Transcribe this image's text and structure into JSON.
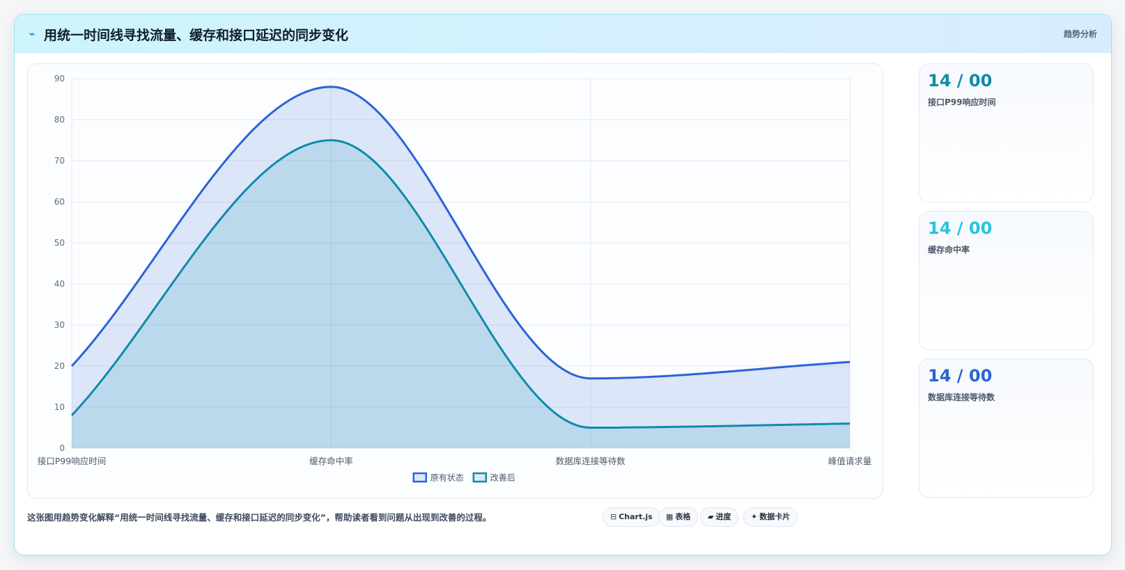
{
  "header": {
    "icon": "lightning-icon",
    "title": "用统一时间线寻找流量、缓存和接口延迟的同步变化",
    "badge": "趋势分析"
  },
  "stats": [
    {
      "value": "14 / 00",
      "label": "接口P99响应时间",
      "color": "#0e8ba8"
    },
    {
      "value": "14 / 00",
      "label": "缓存命中率",
      "color": "#22c7e0"
    },
    {
      "value": "14 / 00",
      "label": "数据库连接等待数",
      "color": "#2a63d6"
    }
  ],
  "footer": {
    "text": "这张图用趋势变化解释“用统一时间线寻找流量、缓存和接口延迟的同步变化”，帮助读者看到问题从出现到改善的过程。"
  },
  "tags": [
    {
      "icon": "chart-icon",
      "glyph": "⊟",
      "label": "Chart.js"
    },
    {
      "icon": "table-icon",
      "glyph": "▦",
      "label": "表格"
    },
    {
      "icon": "progress-icon",
      "glyph": "▰",
      "label": "进度"
    },
    {
      "icon": "sparkle-icon",
      "glyph": "✦",
      "label": "数据卡片"
    }
  ],
  "chart_data": {
    "type": "area",
    "categories": [
      "接口P99响应时间",
      "缓存命中率",
      "数据库连接等待数",
      "峰值请求量"
    ],
    "series": [
      {
        "name": "原有状态",
        "values": [
          20,
          88,
          17,
          21
        ],
        "color": "#2a63d6",
        "fill": "rgba(42,99,214,0.15)"
      },
      {
        "name": "改善后",
        "values": [
          8,
          75,
          5,
          6
        ],
        "color": "#0e8ba8",
        "fill": "rgba(14,139,168,0.15)"
      }
    ],
    "ylim": [
      0,
      90
    ],
    "yticks": [
      0,
      10,
      20,
      30,
      40,
      50,
      60,
      70,
      80,
      90
    ],
    "grid": true,
    "legend": "bottom-center"
  }
}
